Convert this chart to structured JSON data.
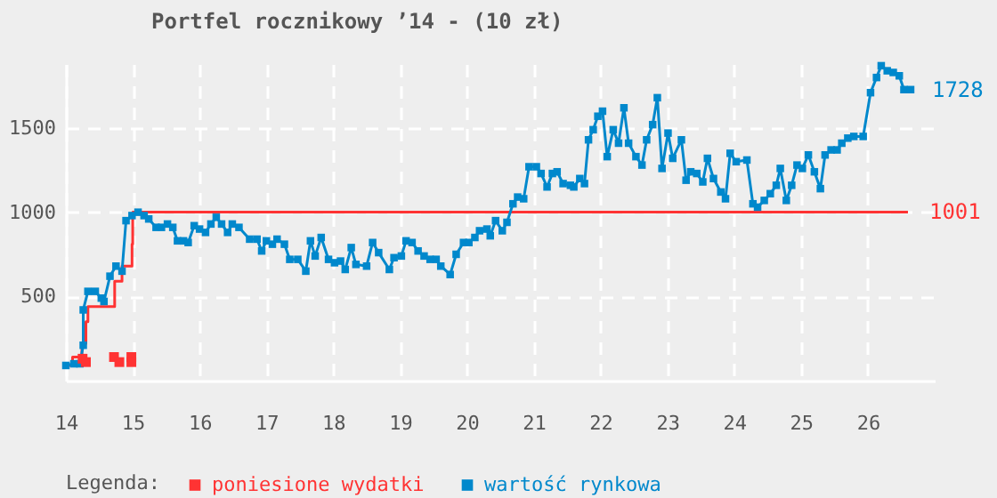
{
  "chart_data": {
    "type": "line",
    "title": "Portfel rocznikowy ’14 - (10 zł)",
    "legend_title": "Legenda:",
    "xlim": [
      14,
      27
    ],
    "xticks": [
      14,
      15,
      16,
      17,
      18,
      19,
      20,
      21,
      22,
      23,
      24,
      25,
      26
    ],
    "ylim": [
      0,
      1880
    ],
    "yticks": [
      500,
      1000,
      1500
    ],
    "grid": true,
    "legend": "bottom",
    "annotations": [
      {
        "text": "1001",
        "x": 26.6,
        "y": 1001
      },
      {
        "text": "1728",
        "x": 26.64,
        "y": 1728
      }
    ],
    "series": [
      {
        "name": "poniesione wydatki",
        "type": "step",
        "marker": "none",
        "color": "#ff3333",
        "x": [
          14.0,
          14.1,
          14.24,
          14.3,
          14.33,
          14.73,
          14.84,
          14.99,
          15.0,
          26.6
        ],
        "values": [
          90,
          140,
          220,
          350,
          440,
          590,
          680,
          810,
          1001,
          1001
        ]
      },
      {
        "name": "wartość rynkowa",
        "marker": "square",
        "color": "#0088cc",
        "x": [
          14.0,
          14.12,
          14.21,
          14.26,
          14.26,
          14.33,
          14.44,
          14.53,
          14.57,
          14.66,
          14.75,
          14.84,
          14.9,
          14.99,
          15.08,
          15.17,
          15.24,
          15.35,
          15.43,
          15.52,
          15.6,
          15.67,
          15.76,
          15.83,
          15.92,
          16.0,
          16.09,
          16.17,
          16.25,
          16.33,
          16.42,
          16.49,
          16.59,
          16.75,
          16.86,
          16.93,
          17.0,
          17.09,
          17.16,
          17.27,
          17.35,
          17.47,
          17.59,
          17.66,
          17.73,
          17.82,
          17.93,
          18.02,
          18.11,
          18.18,
          18.27,
          18.34,
          18.5,
          18.59,
          18.68,
          18.84,
          18.91,
          19.02,
          19.09,
          19.18,
          19.27,
          19.36,
          19.45,
          19.54,
          19.61,
          19.75,
          19.84,
          19.95,
          20.03,
          20.12,
          20.19,
          20.3,
          20.35,
          20.43,
          20.53,
          20.6,
          20.69,
          20.76,
          20.85,
          20.93,
          21.04,
          21.11,
          21.2,
          21.28,
          21.35,
          21.44,
          21.55,
          21.6,
          21.69,
          21.76,
          21.82,
          21.89,
          21.96,
          22.03,
          22.1,
          22.19,
          22.27,
          22.35,
          22.42,
          22.53,
          22.62,
          22.69,
          22.78,
          22.85,
          22.92,
          23.01,
          23.08,
          23.21,
          23.28,
          23.35,
          23.44,
          23.53,
          23.6,
          23.69,
          23.8,
          23.87,
          23.94,
          24.03,
          24.19,
          24.28,
          24.35,
          24.45,
          24.54,
          24.63,
          24.69,
          24.78,
          24.86,
          24.94,
          25.02,
          25.11,
          25.2,
          25.29,
          25.36,
          25.45,
          25.54,
          25.61,
          25.7,
          25.79,
          25.93,
          26.04,
          26.13,
          26.2,
          26.29,
          26.38,
          26.47,
          26.54,
          26.64
        ],
        "values": [
          90,
          100,
          100,
          210,
          420,
          530,
          530,
          490,
          470,
          620,
          680,
          650,
          950,
          980,
          1000,
          980,
          960,
          910,
          910,
          930,
          910,
          830,
          830,
          820,
          920,
          900,
          880,
          930,
          970,
          930,
          880,
          930,
          910,
          840,
          840,
          770,
          830,
          810,
          840,
          810,
          720,
          720,
          650,
          830,
          740,
          850,
          720,
          700,
          710,
          660,
          790,
          690,
          680,
          820,
          760,
          660,
          730,
          740,
          830,
          820,
          770,
          740,
          720,
          720,
          680,
          630,
          750,
          820,
          820,
          850,
          890,
          900,
          860,
          950,
          890,
          940,
          1050,
          1090,
          1080,
          1270,
          1270,
          1230,
          1150,
          1230,
          1240,
          1170,
          1160,
          1150,
          1200,
          1170,
          1430,
          1490,
          1570,
          1600,
          1330,
          1490,
          1410,
          1620,
          1410,
          1330,
          1280,
          1430,
          1520,
          1680,
          1260,
          1470,
          1320,
          1430,
          1190,
          1240,
          1230,
          1180,
          1320,
          1200,
          1120,
          1080,
          1350,
          1300,
          1310,
          1050,
          1030,
          1070,
          1110,
          1160,
          1260,
          1070,
          1160,
          1280,
          1260,
          1340,
          1240,
          1140,
          1340,
          1370,
          1370,
          1410,
          1440,
          1450,
          1450,
          1710,
          1800,
          1870,
          1840,
          1830,
          1810,
          1728,
          1728
        ]
      },
      {
        "type": "scatter",
        "marker": "square",
        "color": "#ff3333",
        "x": [
          14.25,
          14.3,
          14.72,
          14.8,
          14.98,
          14.98
        ],
        "values": [
          130,
          110,
          140,
          110,
          140,
          110
        ]
      }
    ]
  }
}
